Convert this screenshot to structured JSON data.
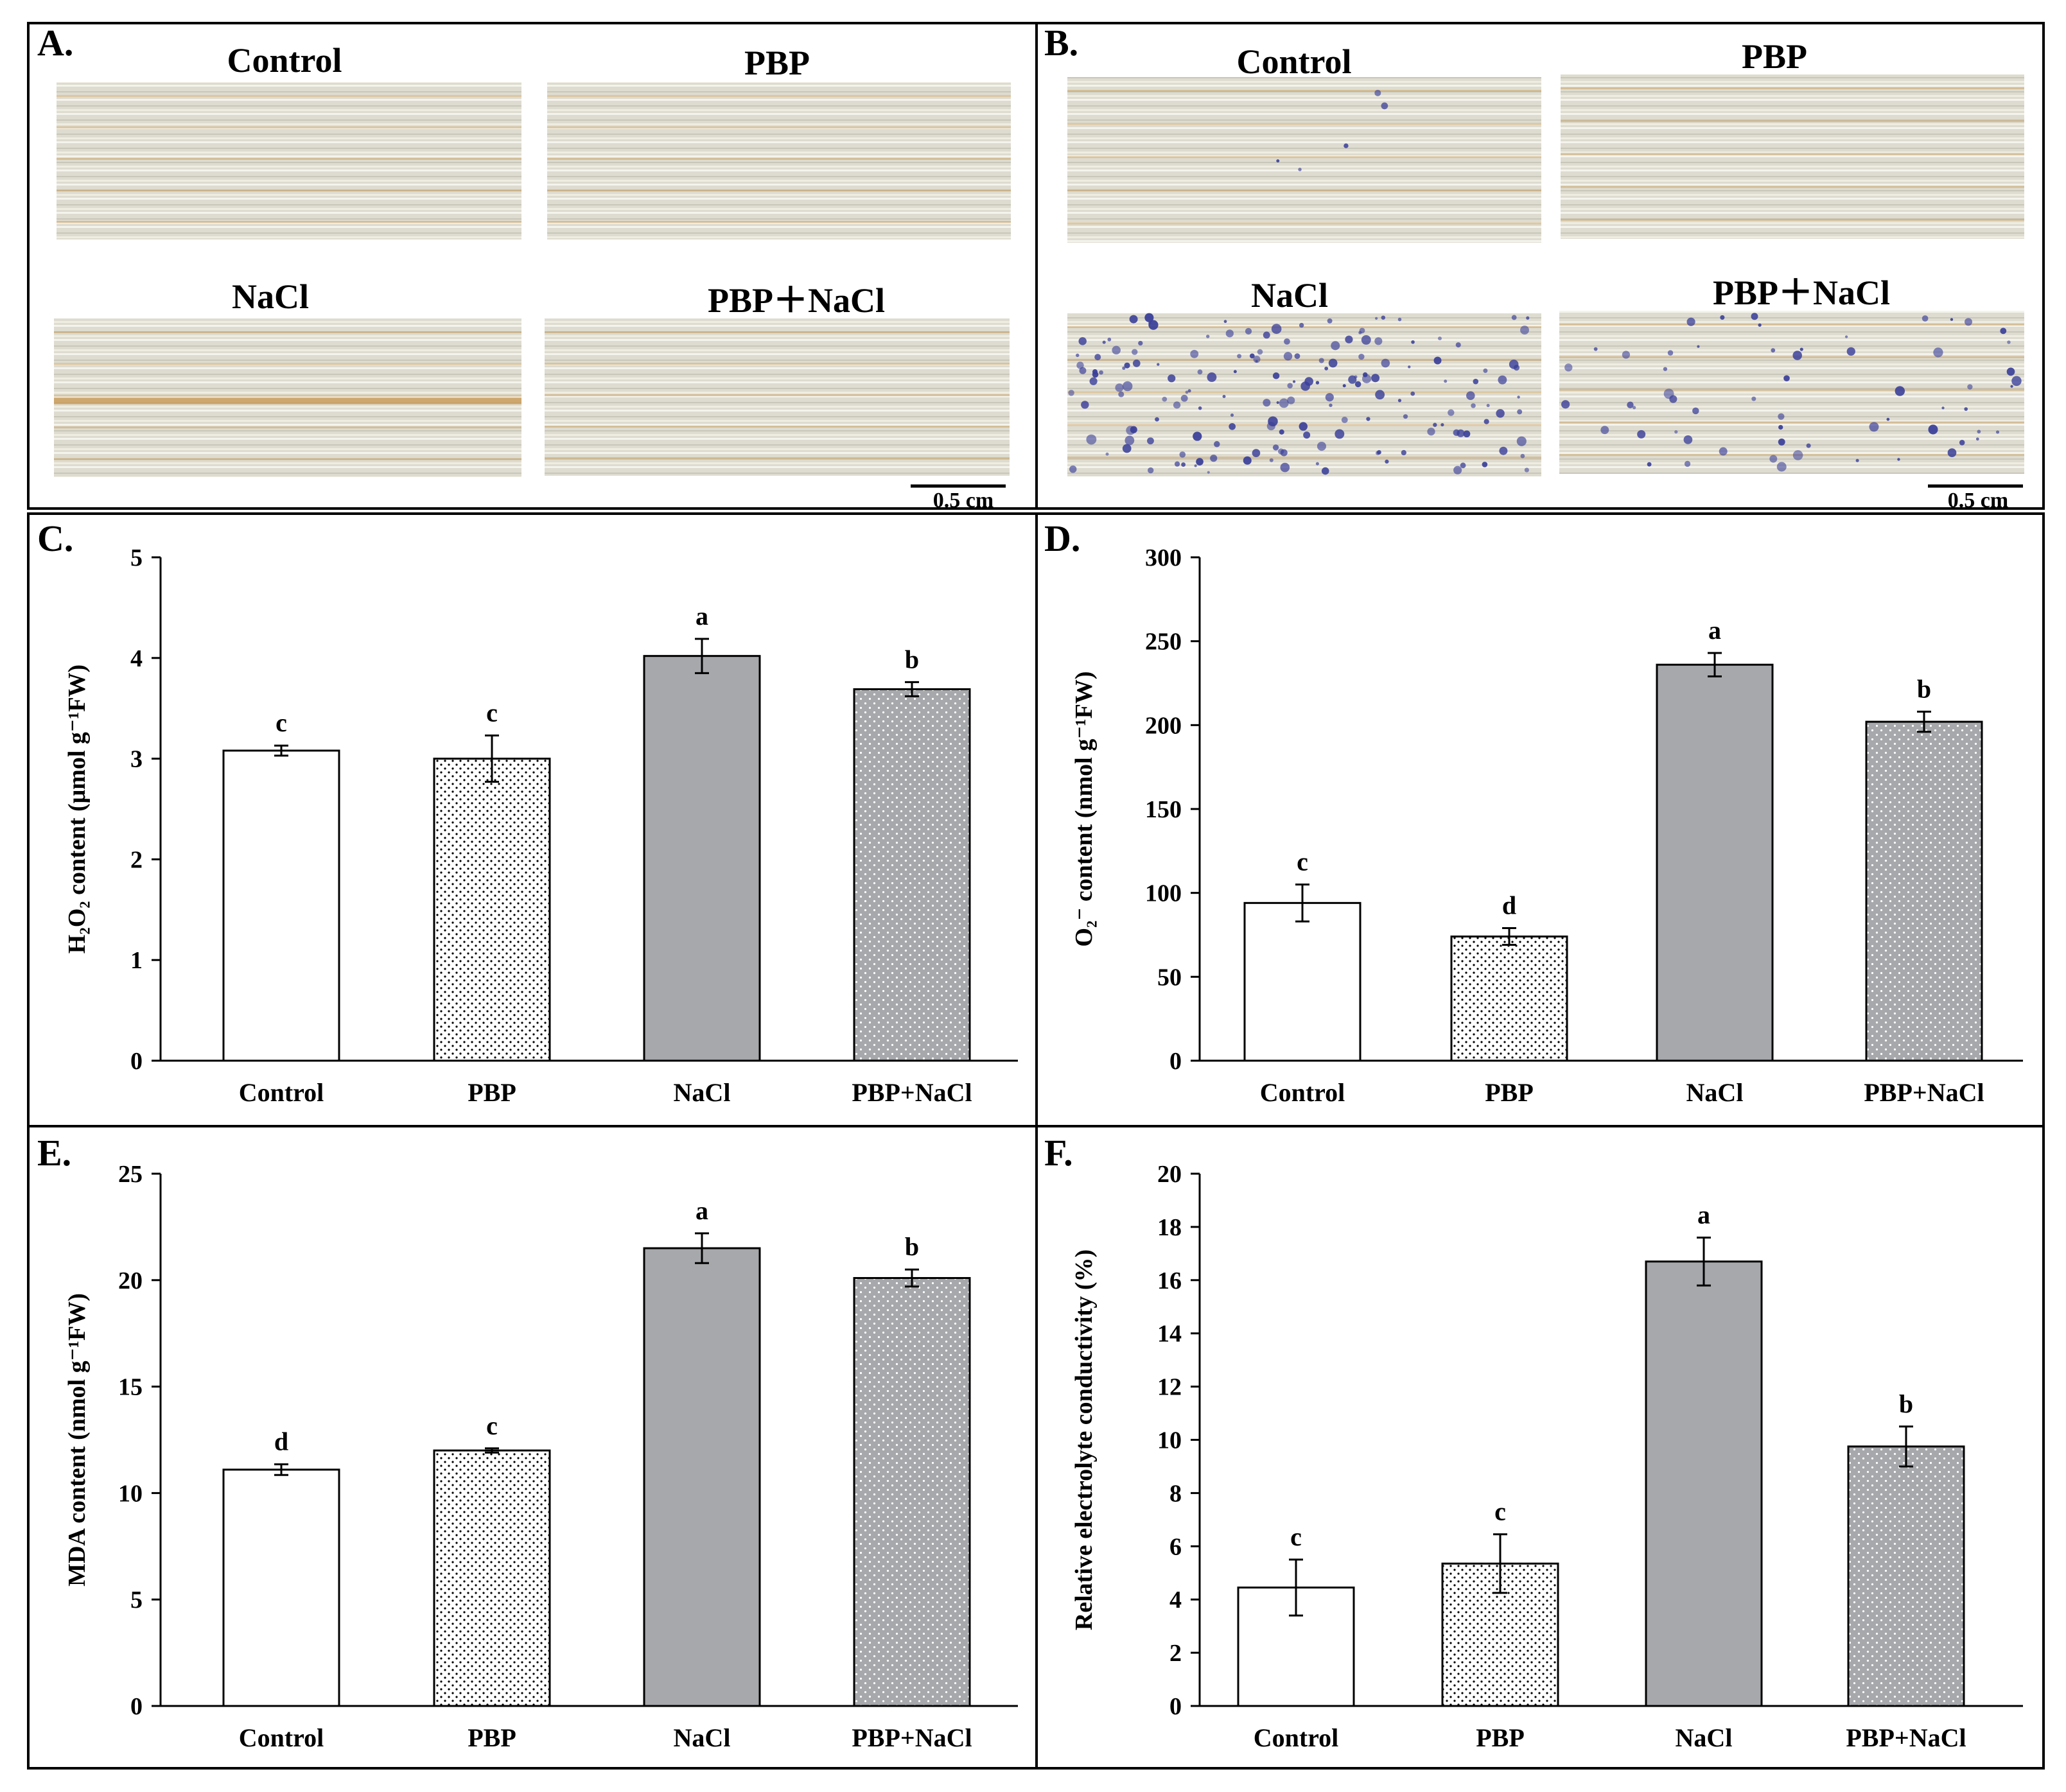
{
  "panel_a": {
    "letter": "A.",
    "photo_labels": [
      "Control",
      "PBP",
      "NaCl",
      "PBP＋NaCl"
    ],
    "scale_bar": "0.5 cm"
  },
  "panel_b": {
    "letter": "B.",
    "photo_labels": [
      "Control",
      "PBP",
      "NaCl",
      "PBP＋NaCl"
    ],
    "scale_bar": "0.5 cm"
  },
  "colors": {
    "control": "#ffffff",
    "pbp": "#ffffff",
    "nacl": "#a6a8ab",
    "pbp_nacl": "#a6a8ab",
    "outline": "#000000",
    "leaf_base": "#dcdcd2",
    "nbt_blue": "#3a3f99",
    "dab_brown": "#c89a55"
  },
  "chart_data": [
    {
      "id": "C",
      "letter": "C.",
      "type": "bar",
      "categories": [
        "Control",
        "PBP",
        "NaCl",
        "PBP+NaCl"
      ],
      "values": [
        3.08,
        3.0,
        4.02,
        3.69
      ],
      "errors": [
        0.05,
        0.23,
        0.17,
        0.07
      ],
      "letters": [
        "c",
        "c",
        "a",
        "b"
      ],
      "ylabel": "H₂O₂ content (μmol g⁻¹FW)",
      "ylim": [
        0,
        5
      ],
      "yticks": [
        0,
        1,
        2,
        3,
        4,
        5
      ]
    },
    {
      "id": "D",
      "letter": "D.",
      "type": "bar",
      "categories": [
        "Control",
        "PBP",
        "NaCl",
        "PBP+NaCl"
      ],
      "values": [
        94,
        74,
        236,
        202
      ],
      "errors": [
        11,
        5,
        7,
        6
      ],
      "letters": [
        "c",
        "d",
        "a",
        "b"
      ],
      "ylabel": "O₂⁻ content (nmol g⁻¹FW)",
      "ylim": [
        0,
        300
      ],
      "yticks": [
        0,
        50,
        100,
        150,
        200,
        250,
        300
      ]
    },
    {
      "id": "E",
      "letter": "E.",
      "type": "bar",
      "categories": [
        "Control",
        "PBP",
        "NaCl",
        "PBP+NaCl"
      ],
      "values": [
        11.1,
        12.0,
        21.5,
        20.1
      ],
      "errors": [
        0.25,
        0.1,
        0.7,
        0.4
      ],
      "letters": [
        "d",
        "c",
        "a",
        "b"
      ],
      "ylabel": "MDA content (nmol g⁻¹FW)",
      "ylim": [
        0,
        25
      ],
      "yticks": [
        0,
        5,
        10,
        15,
        20,
        25
      ]
    },
    {
      "id": "F",
      "letter": "F.",
      "type": "bar",
      "categories": [
        "Control",
        "PBP",
        "NaCl",
        "PBP+NaCl"
      ],
      "values": [
        4.45,
        5.35,
        16.7,
        9.75
      ],
      "errors": [
        1.05,
        1.1,
        0.9,
        0.75
      ],
      "letters": [
        "c",
        "c",
        "a",
        "b"
      ],
      "ylabel": "Relative electrolyte conductivity (%)",
      "ylim": [
        0,
        20
      ],
      "yticks": [
        0,
        2,
        4,
        6,
        8,
        10,
        12,
        14,
        16,
        18,
        20
      ]
    }
  ]
}
